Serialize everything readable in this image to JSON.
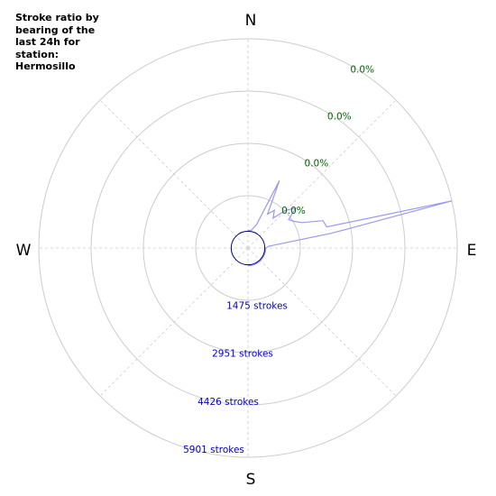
{
  "chart_data": {
    "type": "polar-line",
    "title": "Stroke ratio by bearing of the last 24h for station: Hermosillo",
    "directions": {
      "north": "N",
      "east": "E",
      "south": "S",
      "west": "W"
    },
    "ratio_labels": [
      "0.0%",
      "0.0%",
      "0.0%",
      "0.0%"
    ],
    "stroke_labels": [
      "1475 strokes",
      "2951 strokes",
      "4426 strokes",
      "5901 strokes"
    ],
    "ring_values": [
      1475,
      2951,
      4426,
      5901
    ],
    "r_max": 5901,
    "grid": true,
    "colors": {
      "series": "#9999ee",
      "center_circle": "#000088",
      "ratio_labels": "#006600",
      "stroke_labels": "#0000cc",
      "grid": "#cccccc"
    },
    "series": [
      {
        "bearing_deg": [
          0,
          10,
          20,
          25,
          30,
          35,
          40,
          45,
          50,
          55,
          60,
          65,
          70,
          75,
          77,
          80,
          85,
          90,
          100,
          110,
          120,
          130,
          140,
          150,
          160,
          170,
          180
        ],
        "strokes": [
          500,
          500,
          700,
          2100,
          1100,
          1300,
          1100,
          1500,
          1750,
          1400,
          1500,
          1700,
          2250,
          2300,
          5900,
          2400,
          600,
          500,
          500,
          500,
          500,
          500,
          500,
          500,
          500,
          500,
          500
        ]
      }
    ]
  }
}
